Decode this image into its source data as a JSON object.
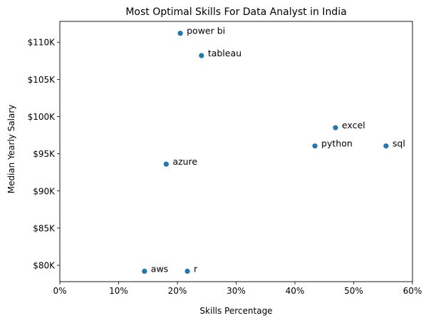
{
  "chart_data": {
    "type": "scatter",
    "title": "Most Optimal Skills For Data Analyst in India",
    "xlabel": "Skills Percentage",
    "ylabel": "Median Yearly Salary",
    "xlim": [
      0,
      60
    ],
    "ylim": [
      77800,
      112800
    ],
    "x_ticks": [
      0,
      10,
      20,
      30,
      40,
      50,
      60
    ],
    "x_tick_labels": [
      "0%",
      "10%",
      "20%",
      "30%",
      "40%",
      "50%",
      "60%"
    ],
    "y_ticks": [
      80000,
      85000,
      90000,
      95000,
      100000,
      105000,
      110000
    ],
    "y_tick_labels": [
      "$80K",
      "$85K",
      "$90K",
      "$95K",
      "$100K",
      "$105K",
      "$110K"
    ],
    "grid": false,
    "marker_color": "#1f77b4",
    "points": [
      {
        "label": "power bi",
        "x": 20.5,
        "y": 111200
      },
      {
        "label": "tableau",
        "x": 24.1,
        "y": 108200
      },
      {
        "label": "excel",
        "x": 46.9,
        "y": 98500
      },
      {
        "label": "python",
        "x": 43.4,
        "y": 96050
      },
      {
        "label": "sql",
        "x": 55.5,
        "y": 96050
      },
      {
        "label": "azure",
        "x": 18.1,
        "y": 93600
      },
      {
        "label": "aws",
        "x": 14.4,
        "y": 79200
      },
      {
        "label": "r",
        "x": 21.7,
        "y": 79200
      }
    ]
  }
}
